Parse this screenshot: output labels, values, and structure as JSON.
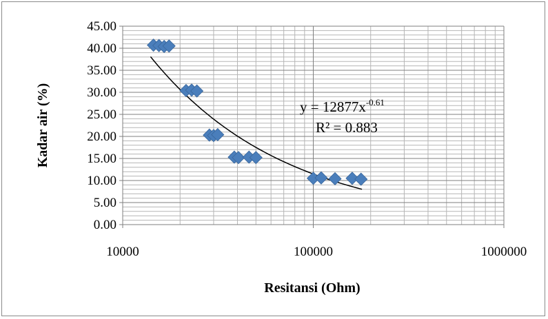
{
  "chart_data": {
    "type": "scatter",
    "title": "",
    "xlabel": "Resitansi (Ohm)",
    "ylabel": "Kadar air (%)",
    "x_scale": "log",
    "xlim": [
      10000,
      1000000
    ],
    "ylim": [
      0,
      45
    ],
    "x_ticks": [
      "10000",
      "100000",
      "1000000"
    ],
    "y_ticks": [
      "0.00",
      "5.00",
      "10.00",
      "15.00",
      "20.00",
      "25.00",
      "30.00",
      "35.00",
      "40.00",
      "45.00"
    ],
    "grid": true,
    "marker_color": "#4a7ebb",
    "trendline_color": "#000000",
    "series": [
      {
        "points": [
          {
            "x": 14500,
            "y": 40.7
          },
          {
            "x": 15500,
            "y": 40.6
          },
          {
            "x": 16500,
            "y": 40.4
          },
          {
            "x": 17500,
            "y": 40.5
          },
          {
            "x": 21500,
            "y": 30.4
          },
          {
            "x": 23000,
            "y": 30.5
          },
          {
            "x": 24500,
            "y": 30.3
          },
          {
            "x": 28500,
            "y": 20.3
          },
          {
            "x": 30000,
            "y": 20.2
          },
          {
            "x": 31500,
            "y": 20.4
          },
          {
            "x": 38500,
            "y": 15.3
          },
          {
            "x": 40500,
            "y": 15.2
          },
          {
            "x": 46000,
            "y": 15.3
          },
          {
            "x": 50000,
            "y": 15.2
          },
          {
            "x": 100000,
            "y": 10.5
          },
          {
            "x": 110000,
            "y": 10.6
          },
          {
            "x": 130000,
            "y": 10.4
          },
          {
            "x": 160000,
            "y": 10.5
          },
          {
            "x": 178000,
            "y": 10.3
          }
        ]
      }
    ],
    "trendline": {
      "type": "power",
      "coefficient": 12877,
      "exponent": -0.61,
      "x_range": [
        14000,
        180000
      ],
      "equation_prefix": "y = 12877x",
      "equation_exponent": "-0.61",
      "r_squared": "R² = 0.883"
    }
  }
}
